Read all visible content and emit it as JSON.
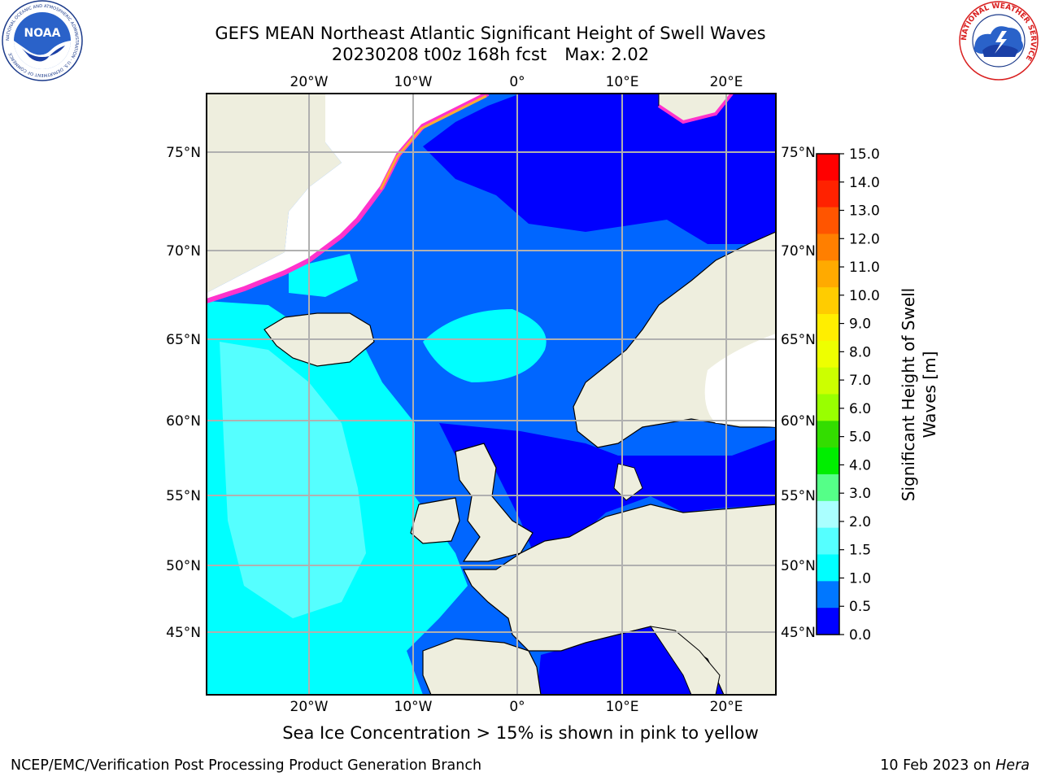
{
  "header": {
    "title_line1": "GEFS MEAN Northeast Atlantic Significant Height of Swell Waves",
    "title_line2_run": "20230208 t00z 168h fcst",
    "title_line2_max": "Max: 2.02"
  },
  "logos": {
    "left_name": "NOAA",
    "left_ring_text": "NATIONAL OCEANIC AND ATMOSPHERIC ADMINISTRATION · U.S. DEPARTMENT OF COMMERCE",
    "right_ring_text": "NATIONAL WEATHER SERVICE"
  },
  "map": {
    "lon_labels": [
      "20°W",
      "10°W",
      "0°",
      "10°E",
      "20°E"
    ],
    "lat_labels": [
      "75°N",
      "70°N",
      "65°N",
      "60°N",
      "55°N",
      "50°N",
      "45°N"
    ],
    "colors": {
      "ocean_calm": "#0000ff",
      "ocean_low": "#0066ff",
      "ocean_mid": "#00ffff",
      "ocean_high": "#55ffff",
      "land": "#eeeede",
      "ice_pink": "#ff33cc",
      "ice_orange": "#ffaa33",
      "ice_yellow": "#ffee66",
      "grid": "#b0b0b0"
    }
  },
  "colorbar": {
    "label": "Significant Height of Swell Waves [m]",
    "ticks": [
      "15.0",
      "14.0",
      "13.0",
      "12.0",
      "11.0",
      "10.0",
      "9.0",
      "8.0",
      "7.0",
      "6.0",
      "5.0",
      "4.0",
      "3.0",
      "2.0",
      "1.5",
      "1.0",
      "0.5",
      "0.0"
    ],
    "colors": [
      "#ff0000",
      "#ff2200",
      "#ff5500",
      "#ff7f00",
      "#ffaa00",
      "#ffcc00",
      "#ffee00",
      "#eeff00",
      "#ccff00",
      "#99ff00",
      "#33dd00",
      "#00ee00",
      "#55ff88",
      "#aaffff",
      "#55ffff",
      "#00ffff",
      "#0077ff",
      "#0000ff"
    ]
  },
  "note": "Sea Ice Concentration > 15% is shown in pink to yellow",
  "footer": {
    "left": "NCEP/EMC/Verification Post Processing Product Generation Branch",
    "right_prefix": "10 Feb 2023 on ",
    "right_host": "Hera"
  }
}
